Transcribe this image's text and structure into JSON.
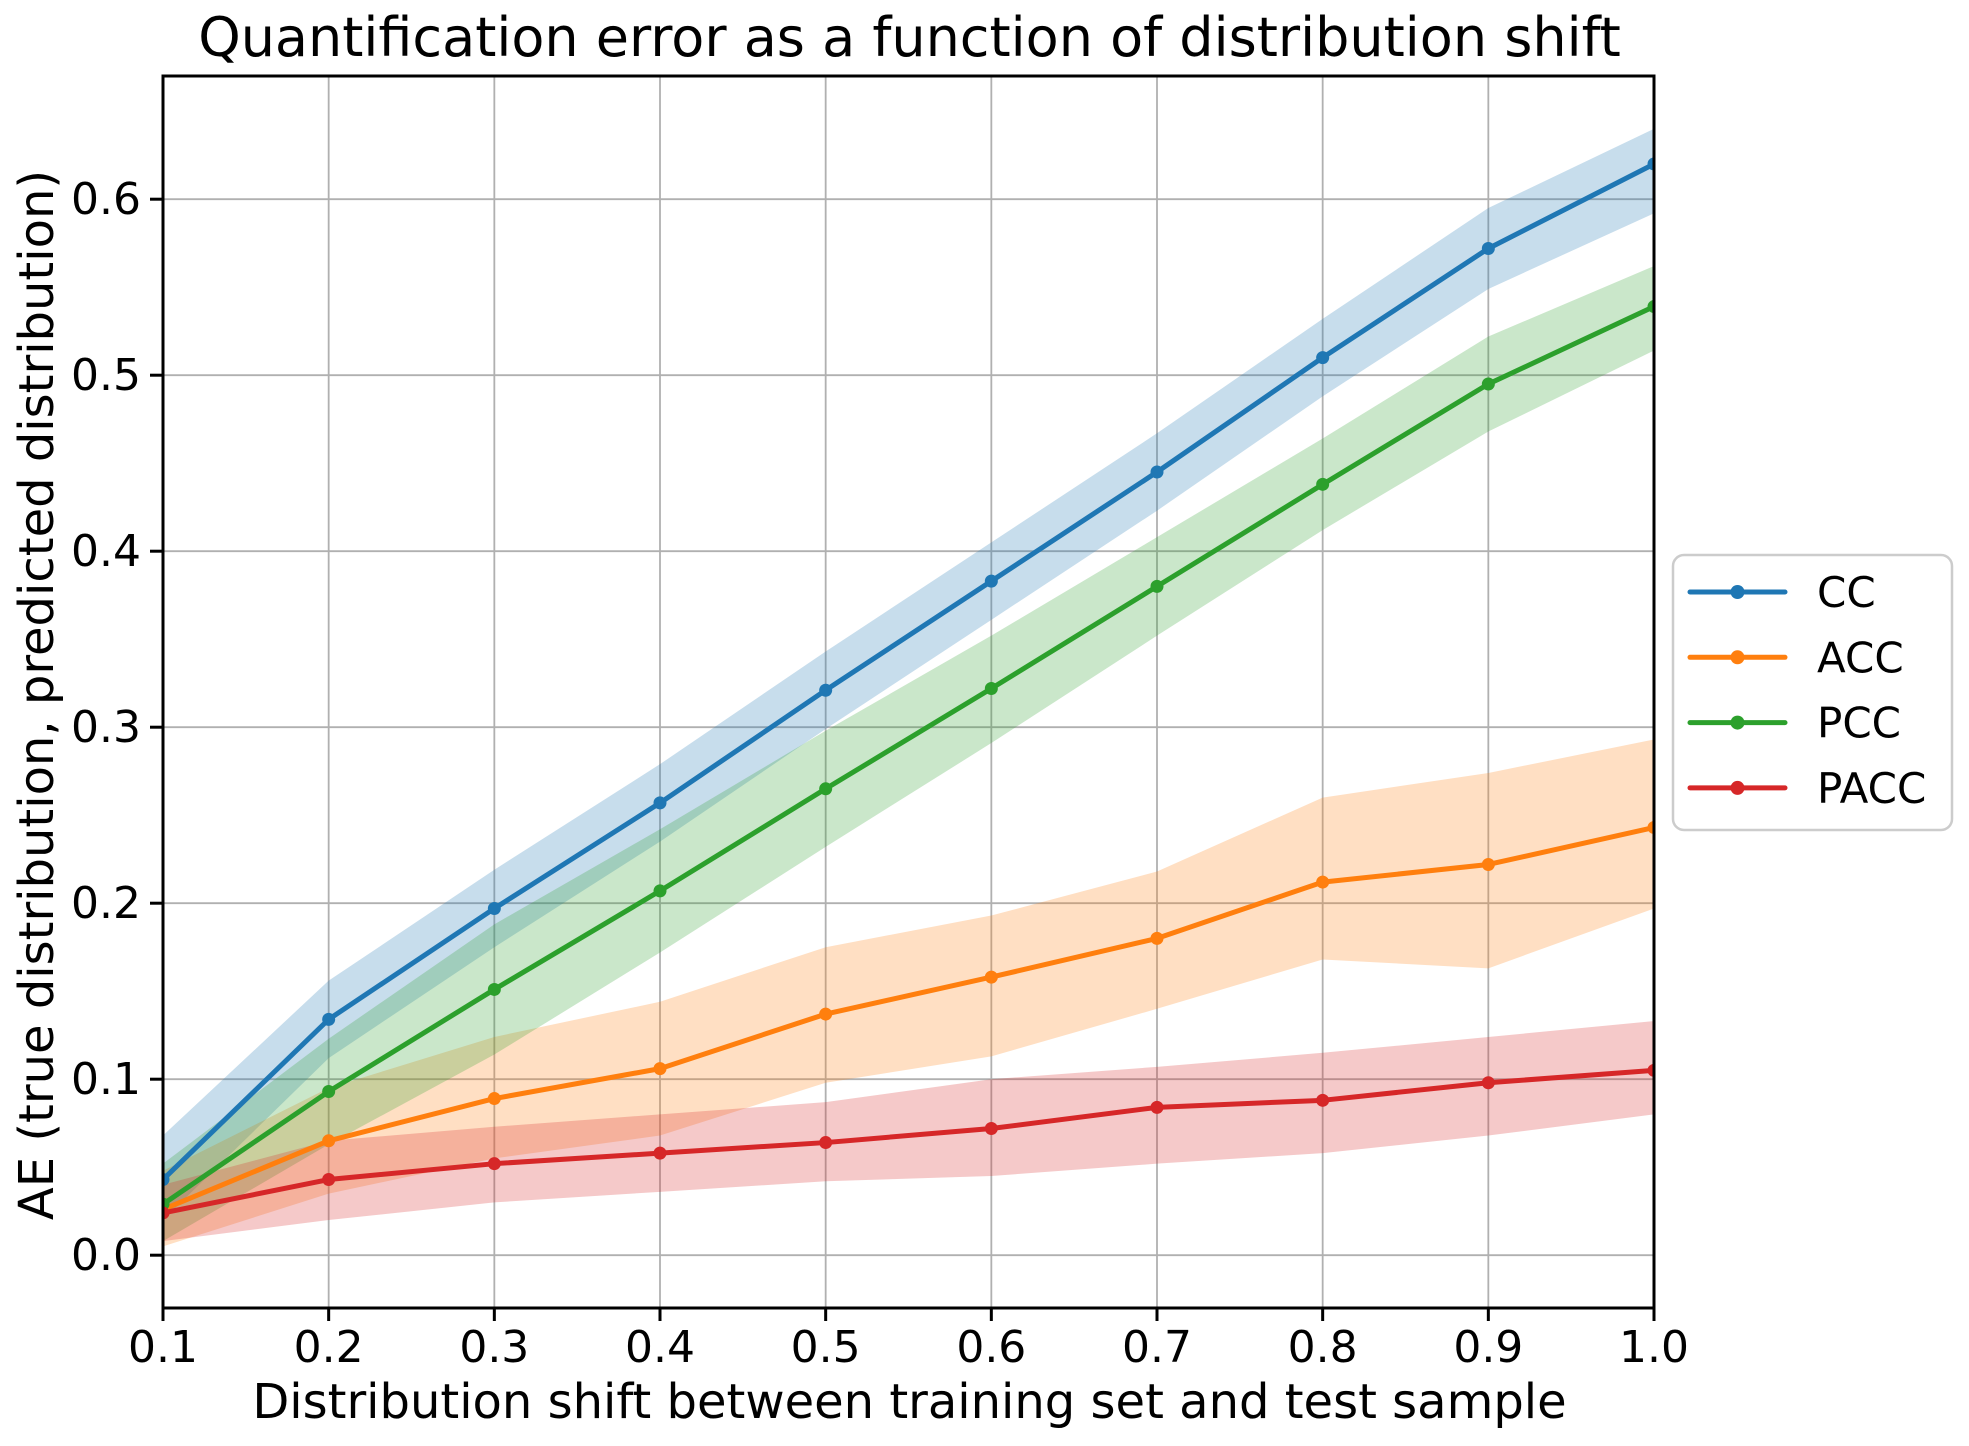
{
  "figure": {
    "title": "Quantification error as a function of distribution shift",
    "xlabel": "Distribution shift between training set and test sample",
    "ylabel": "AE (true distribution, predicted distribution)",
    "background": "#ffffff"
  },
  "chart_data": {
    "type": "line",
    "title": "Quantification error as a function of distribution shift",
    "xlabel": "Distribution shift between training set and test sample",
    "ylabel": "AE (true distribution, predicted distribution)",
    "x": [
      0.1,
      0.2,
      0.3,
      0.4,
      0.5,
      0.6,
      0.7,
      0.8,
      0.9,
      1.0
    ],
    "x_tick_labels": [
      "0.1",
      "0.2",
      "0.3",
      "0.4",
      "0.5",
      "0.6",
      "0.7",
      "0.8",
      "0.9",
      "1.0"
    ],
    "y_ticks": [
      0.0,
      0.1,
      0.2,
      0.3,
      0.4,
      0.5,
      0.6
    ],
    "y_tick_labels": [
      "0.0",
      "0.1",
      "0.2",
      "0.3",
      "0.4",
      "0.5",
      "0.6"
    ],
    "xlim": [
      0.1,
      1.0
    ],
    "ylim": [
      -0.03,
      0.67
    ],
    "grid": true,
    "grid_color": "#b0b0b0",
    "spine_color": "#000000",
    "band_alpha": 0.25,
    "legend": {
      "position": "right-outside",
      "entries": [
        "CC",
        "ACC",
        "PCC",
        "PACC"
      ]
    },
    "series": [
      {
        "name": "CC",
        "color": "#1f77b4",
        "values": [
          0.043,
          0.134,
          0.197,
          0.257,
          0.321,
          0.383,
          0.445,
          0.51,
          0.572,
          0.62
        ],
        "band_lower": [
          0.02,
          0.112,
          0.175,
          0.235,
          0.299,
          0.361,
          0.423,
          0.488,
          0.549,
          0.592
        ],
        "band_upper": [
          0.068,
          0.156,
          0.219,
          0.279,
          0.343,
          0.405,
          0.467,
          0.532,
          0.595,
          0.64
        ]
      },
      {
        "name": "ACC",
        "color": "#ff7f0e",
        "values": [
          0.026,
          0.065,
          0.089,
          0.106,
          0.137,
          0.158,
          0.18,
          0.212,
          0.222,
          0.243
        ],
        "band_lower": [
          0.005,
          0.035,
          0.055,
          0.068,
          0.098,
          0.113,
          0.14,
          0.168,
          0.163,
          0.197
        ],
        "band_upper": [
          0.048,
          0.095,
          0.124,
          0.144,
          0.175,
          0.193,
          0.218,
          0.26,
          0.274,
          0.293
        ]
      },
      {
        "name": "PCC",
        "color": "#2ca02c",
        "values": [
          0.029,
          0.093,
          0.151,
          0.207,
          0.265,
          0.322,
          0.38,
          0.438,
          0.495,
          0.539
        ],
        "band_lower": [
          0.008,
          0.063,
          0.114,
          0.172,
          0.232,
          0.291,
          0.352,
          0.412,
          0.468,
          0.514
        ],
        "band_upper": [
          0.052,
          0.123,
          0.188,
          0.242,
          0.298,
          0.352,
          0.408,
          0.464,
          0.522,
          0.562
        ]
      },
      {
        "name": "PACC",
        "color": "#d62728",
        "values": [
          0.024,
          0.043,
          0.052,
          0.058,
          0.064,
          0.072,
          0.084,
          0.088,
          0.098,
          0.105
        ],
        "band_lower": [
          0.008,
          0.02,
          0.03,
          0.036,
          0.042,
          0.045,
          0.052,
          0.058,
          0.068,
          0.08
        ],
        "band_upper": [
          0.04,
          0.065,
          0.073,
          0.08,
          0.087,
          0.1,
          0.107,
          0.115,
          0.124,
          0.133
        ]
      }
    ]
  }
}
